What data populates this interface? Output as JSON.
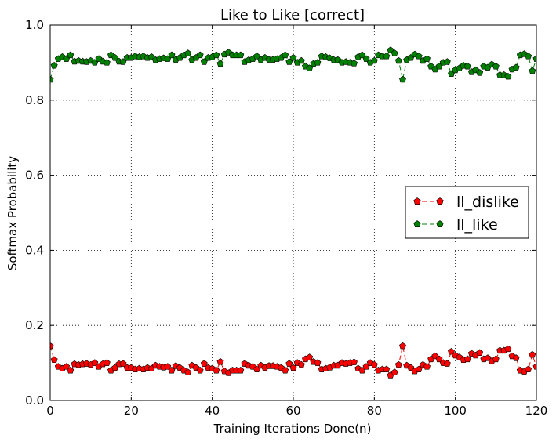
{
  "chart_data": {
    "type": "line",
    "title": "Like to Like [correct]",
    "xlabel": "Training Iterations Done(n)",
    "ylabel": "Softmax Probability",
    "xlim": [
      0,
      120
    ],
    "ylim": [
      0.0,
      1.0
    ],
    "xticks": [
      "0",
      "20",
      "40",
      "60",
      "80",
      "100",
      "120"
    ],
    "yticks": [
      "0.0",
      "0.2",
      "0.4",
      "0.6",
      "0.8",
      "1.0"
    ],
    "grid": true,
    "legend_position": "center-right",
    "series": [
      {
        "name": "ll_dislike",
        "color": "#ff0000",
        "marker": "pentagon",
        "linestyle": "dashed",
        "y": [
          0.145,
          0.108,
          0.09,
          0.085,
          0.09,
          0.08,
          0.097,
          0.095,
          0.097,
          0.098,
          0.095,
          0.1,
          0.09,
          0.097,
          0.1,
          0.08,
          0.087,
          0.097,
          0.098,
          0.087,
          0.087,
          0.083,
          0.085,
          0.083,
          0.087,
          0.085,
          0.093,
          0.09,
          0.088,
          0.09,
          0.08,
          0.092,
          0.087,
          0.08,
          0.075,
          0.093,
          0.087,
          0.08,
          0.098,
          0.087,
          0.085,
          0.08,
          0.103,
          0.078,
          0.073,
          0.08,
          0.08,
          0.08,
          0.098,
          0.093,
          0.09,
          0.083,
          0.093,
          0.087,
          0.092,
          0.092,
          0.09,
          0.087,
          0.08,
          0.098,
          0.087,
          0.1,
          0.095,
          0.11,
          0.115,
          0.103,
          0.1,
          0.083,
          0.085,
          0.088,
          0.093,
          0.093,
          0.1,
          0.098,
          0.1,
          0.102,
          0.085,
          0.08,
          0.09,
          0.1,
          0.095,
          0.08,
          0.083,
          0.083,
          0.067,
          0.075,
          0.095,
          0.145,
          0.093,
          0.087,
          0.078,
          0.083,
          0.095,
          0.09,
          0.11,
          0.118,
          0.11,
          0.1,
          0.098,
          0.13,
          0.12,
          0.115,
          0.108,
          0.11,
          0.125,
          0.12,
          0.127,
          0.11,
          0.113,
          0.105,
          0.11,
          0.133,
          0.133,
          0.137,
          0.118,
          0.113,
          0.08,
          0.077,
          0.083,
          0.122,
          0.09
        ]
      },
      {
        "name": "ll_like",
        "color": "#008000",
        "marker": "pentagon",
        "linestyle": "dashed",
        "y": [
          0.855,
          0.892,
          0.91,
          0.915,
          0.91,
          0.92,
          0.903,
          0.905,
          0.903,
          0.902,
          0.905,
          0.9,
          0.91,
          0.903,
          0.9,
          0.92,
          0.913,
          0.903,
          0.902,
          0.913,
          0.913,
          0.917,
          0.915,
          0.917,
          0.913,
          0.915,
          0.907,
          0.91,
          0.912,
          0.91,
          0.92,
          0.908,
          0.913,
          0.92,
          0.925,
          0.907,
          0.913,
          0.92,
          0.902,
          0.913,
          0.915,
          0.92,
          0.897,
          0.922,
          0.927,
          0.92,
          0.92,
          0.92,
          0.902,
          0.907,
          0.91,
          0.917,
          0.907,
          0.913,
          0.908,
          0.908,
          0.91,
          0.913,
          0.92,
          0.902,
          0.913,
          0.9,
          0.905,
          0.89,
          0.885,
          0.897,
          0.9,
          0.917,
          0.915,
          0.912,
          0.907,
          0.907,
          0.9,
          0.902,
          0.9,
          0.898,
          0.915,
          0.92,
          0.91,
          0.9,
          0.905,
          0.92,
          0.917,
          0.917,
          0.933,
          0.925,
          0.905,
          0.855,
          0.907,
          0.913,
          0.922,
          0.917,
          0.905,
          0.91,
          0.89,
          0.882,
          0.89,
          0.9,
          0.902,
          0.87,
          0.88,
          0.885,
          0.892,
          0.89,
          0.875,
          0.88,
          0.873,
          0.89,
          0.887,
          0.895,
          0.89,
          0.867,
          0.867,
          0.863,
          0.882,
          0.887,
          0.92,
          0.923,
          0.917,
          0.878,
          0.91
        ]
      }
    ]
  }
}
